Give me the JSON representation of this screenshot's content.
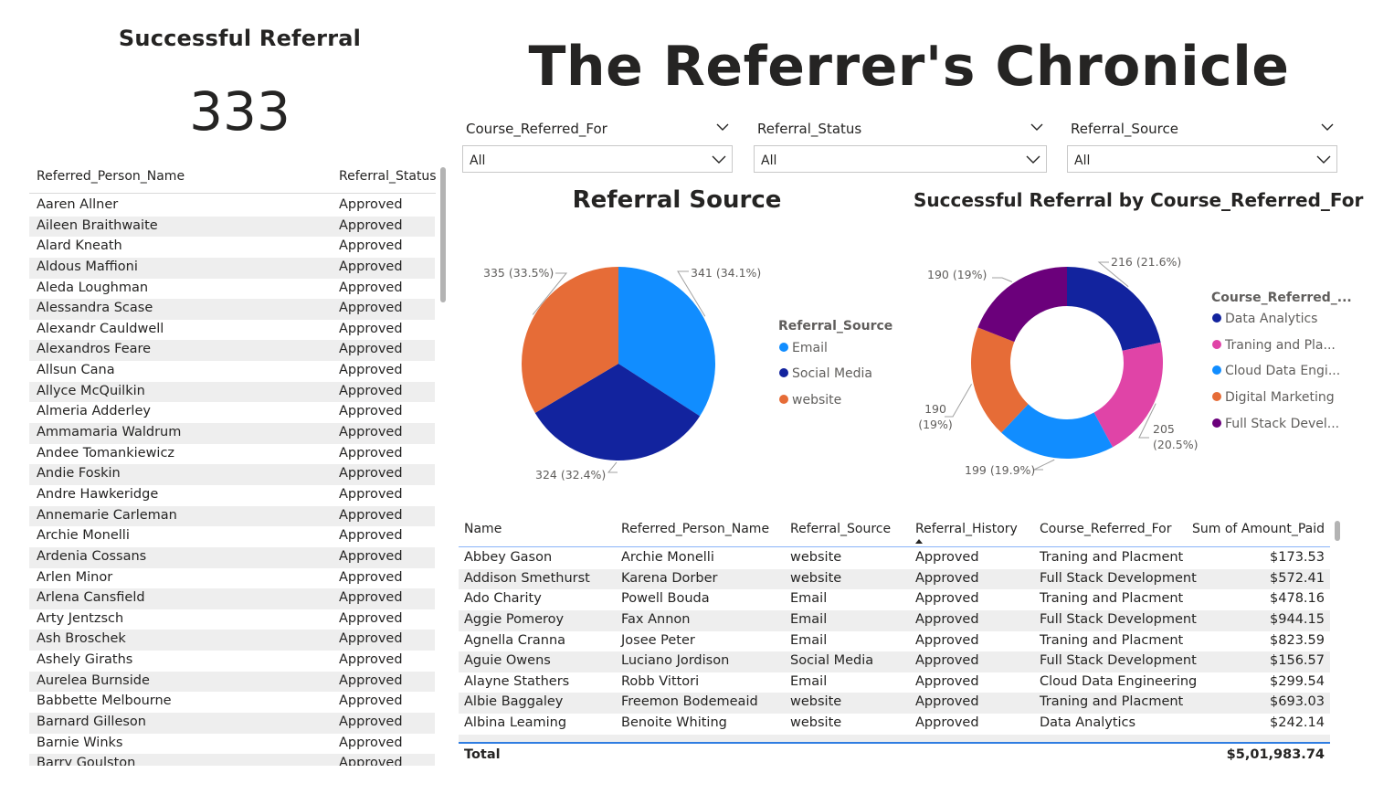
{
  "kpi": {
    "title": "Successful Referral",
    "value": "333"
  },
  "page_title": "The Referrer's Chronicle",
  "left_table": {
    "columns": [
      "Referred_Person_Name",
      "Referral_Status"
    ],
    "rows": [
      [
        "Aaren Allner",
        "Approved"
      ],
      [
        "Aileen Braithwaite",
        "Approved"
      ],
      [
        "Alard Kneath",
        "Approved"
      ],
      [
        "Aldous Maffioni",
        "Approved"
      ],
      [
        "Aleda Loughman",
        "Approved"
      ],
      [
        "Alessandra Scase",
        "Approved"
      ],
      [
        "Alexandr Cauldwell",
        "Approved"
      ],
      [
        "Alexandros Feare",
        "Approved"
      ],
      [
        "Allsun Cana",
        "Approved"
      ],
      [
        "Allyce McQuilkin",
        "Approved"
      ],
      [
        "Almeria Adderley",
        "Approved"
      ],
      [
        "Ammamaria Waldrum",
        "Approved"
      ],
      [
        "Andee Tomankiewicz",
        "Approved"
      ],
      [
        "Andie Foskin",
        "Approved"
      ],
      [
        "Andre Hawkeridge",
        "Approved"
      ],
      [
        "Annemarie Carleman",
        "Approved"
      ],
      [
        "Archie Monelli",
        "Approved"
      ],
      [
        "Ardenia Cossans",
        "Approved"
      ],
      [
        "Arlen Minor",
        "Approved"
      ],
      [
        "Arlena Cansfield",
        "Approved"
      ],
      [
        "Arty Jentzsch",
        "Approved"
      ],
      [
        "Ash Broschek",
        "Approved"
      ],
      [
        "Ashely Giraths",
        "Approved"
      ],
      [
        "Aurelea Burnside",
        "Approved"
      ],
      [
        "Babbette Melbourne",
        "Approved"
      ],
      [
        "Barnard Gilleson",
        "Approved"
      ],
      [
        "Barnie Winks",
        "Approved"
      ],
      [
        "Barry Goulston",
        "Approved"
      ]
    ]
  },
  "slicers": [
    {
      "label": "Course_Referred_For",
      "value": "All"
    },
    {
      "label": "Referral_Status",
      "value": "All"
    },
    {
      "label": "Referral_Source",
      "value": "All"
    }
  ],
  "chart_data": [
    {
      "type": "pie",
      "title": "Referral Source",
      "legend_title": "Referral_Source",
      "legend_position": "right",
      "categories": [
        "Email",
        "Social Media",
        "website"
      ],
      "values": [
        341,
        324,
        335
      ],
      "colors": [
        "#118dff",
        "#12239e",
        "#e66c37"
      ],
      "data_labels": [
        "341 (34.1%)",
        "324 (32.4%)",
        "335 (33.5%)"
      ]
    },
    {
      "type": "pie",
      "subtype": "donut",
      "title": "Successful Referral by Course_Referred_For",
      "legend_title": "Course_Referred_...",
      "legend_position": "right",
      "categories": [
        "Data Analytics",
        "Traning and Pla...",
        "Cloud Data Engi...",
        "Digital Marketing",
        "Full Stack Devel..."
      ],
      "values": [
        216,
        205,
        199,
        190,
        190
      ],
      "colors": [
        "#12239e",
        "#e044a7",
        "#118dff",
        "#e66c37",
        "#6b007b"
      ],
      "data_labels": [
        "216 (21.6%)",
        "205 (20.5%)",
        "199 (19.9%)",
        "190 (19%)",
        "190 (19%)"
      ]
    }
  ],
  "bottom_table": {
    "columns": [
      "Name",
      "Referred_Person_Name",
      "Referral_Source",
      "Referral_History",
      "Course_Referred_For",
      "Sum of Amount_Paid"
    ],
    "rows": [
      [
        "Abbey Gason",
        "Archie Monelli",
        "website",
        "Approved",
        "Traning and Placment",
        "$173.53"
      ],
      [
        "Addison Smethurst",
        "Karena Dorber",
        "website",
        "Approved",
        "Full Stack Development",
        "$572.41"
      ],
      [
        "Ado Charity",
        "Powell Bouda",
        "Email",
        "Approved",
        "Traning and Placment",
        "$478.16"
      ],
      [
        "Aggie Pomeroy",
        "Fax Annon",
        "Email",
        "Approved",
        "Full Stack Development",
        "$944.15"
      ],
      [
        "Agnella Cranna",
        "Josee Peter",
        "Email",
        "Approved",
        "Traning and Placment",
        "$823.59"
      ],
      [
        "Aguie Owens",
        "Luciano Jordison",
        "Social Media",
        "Approved",
        "Full Stack Development",
        "$156.57"
      ],
      [
        "Alayne Stathers",
        "Robb Vittori",
        "Email",
        "Approved",
        "Cloud Data Engineering",
        "$299.54"
      ],
      [
        "Albie Baggaley",
        "Freemon Bodemeaid",
        "website",
        "Approved",
        "Traning and Placment",
        "$693.03"
      ],
      [
        "Albina Leaming",
        "Benoite Whiting",
        "website",
        "Approved",
        "Data Analytics",
        "$242.14"
      ]
    ],
    "total_label": "Total",
    "total_value": "$5,01,983.74"
  }
}
